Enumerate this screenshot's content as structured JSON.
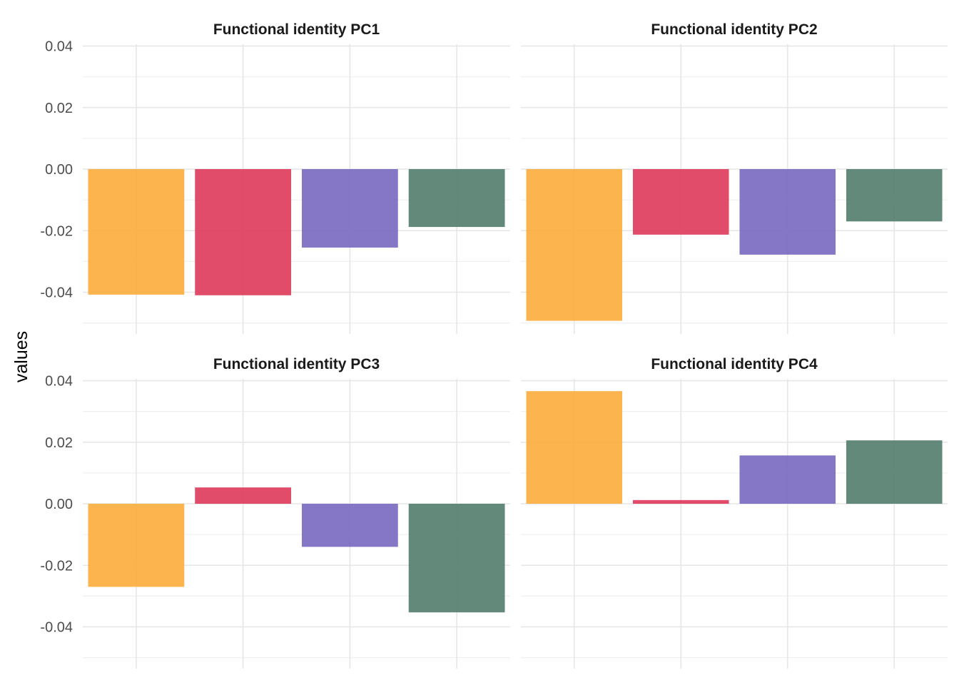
{
  "chart_data": {
    "type": "bar",
    "ylabel": "values",
    "xlabel": "",
    "ylim": [
      -0.05,
      0.04
    ],
    "y_ticks": [
      "0.04",
      "0.02",
      "0.00",
      "-0.02",
      "-0.04"
    ],
    "y_tick_values": [
      0.04,
      0.02,
      0.0,
      -0.02,
      -0.04
    ],
    "grid": true,
    "legend": "none",
    "bar_colors": [
      "#fcae3f",
      "#dd3d5c",
      "#7b6ac1",
      "#557f6f"
    ],
    "facets": [
      {
        "title": "Functional identity PC1",
        "values": [
          -0.0408,
          -0.041,
          -0.0255,
          -0.0188
        ]
      },
      {
        "title": "Functional identity PC2",
        "values": [
          -0.0493,
          -0.0213,
          -0.0278,
          -0.017
        ]
      },
      {
        "title": "Functional identity PC3",
        "values": [
          -0.027,
          0.0053,
          -0.014,
          -0.0353
        ]
      },
      {
        "title": "Functional identity PC4",
        "values": [
          0.0366,
          0.0012,
          0.0157,
          0.0206
        ]
      }
    ]
  }
}
